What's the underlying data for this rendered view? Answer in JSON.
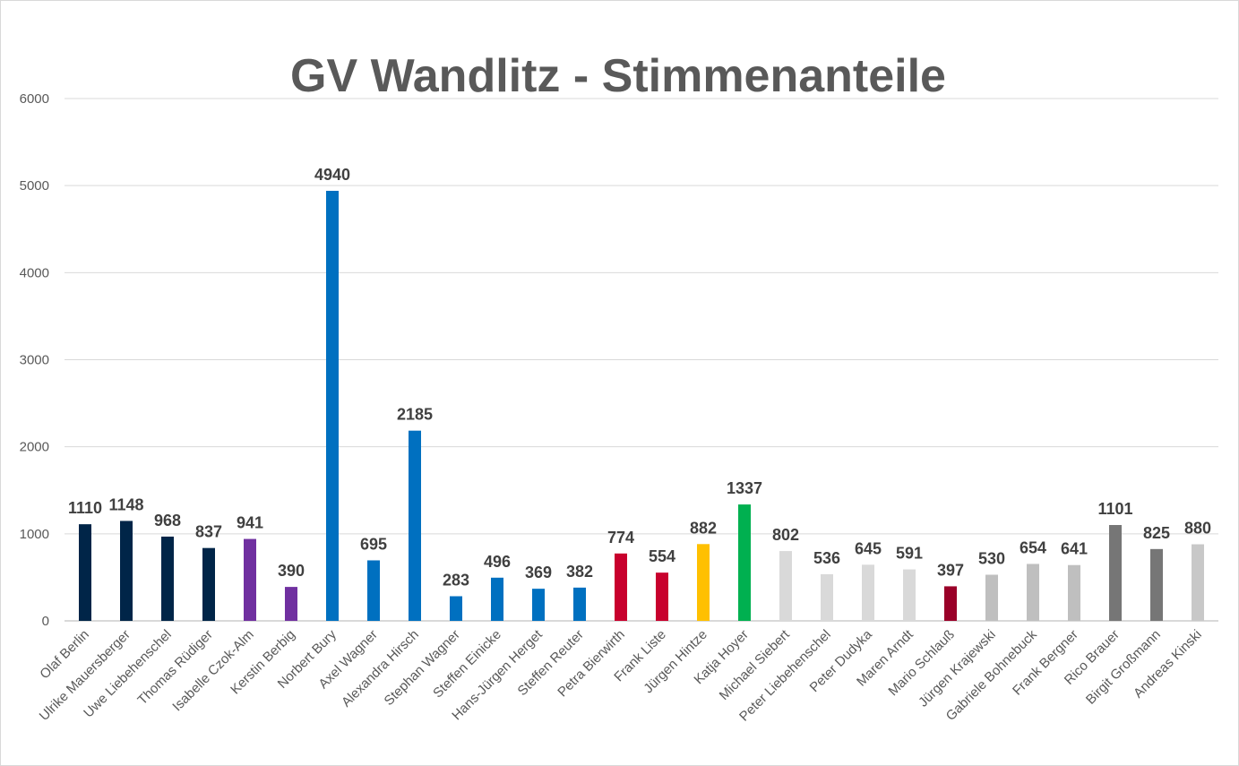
{
  "chart_data": {
    "type": "bar",
    "title": "GV Wandlitz - Stimmenanteile",
    "xlabel": "",
    "ylabel": "",
    "ylim": [
      0,
      6000
    ],
    "yticks": [
      "0",
      "1000",
      "2000",
      "3000",
      "4000",
      "5000",
      "6000"
    ],
    "grid": true,
    "legend": "none",
    "categories": [
      "Olaf Berlin",
      "Ulrike Mauersberger",
      "Uwe Liebehenschel",
      "Thomas Rüdiger",
      "Isabelle Czok-Alm",
      "Kerstin Berbig",
      "Norbert Bury",
      "Axel Wagner",
      "Alexandra Hirsch",
      "Stephan Wagner",
      "Steffen Einicke",
      "Hans-Jürgen Herget",
      "Steffen Reuter",
      "Petra Bierwirth",
      "Frank Liste",
      "Jürgen Hintze",
      "Katja Hoyer",
      "Michael Siebert",
      "Peter Liebehenschel",
      "Peter Dudyka",
      "Maren Arndt",
      "Mario Schlauß",
      "Jürgen Krajewski",
      "Gabriele Bohnebuck",
      "Frank Bergner",
      "Rico Brauer",
      "Birgit Großmann",
      "Andreas Kinski"
    ],
    "values": [
      1110,
      1148,
      968,
      837,
      941,
      390,
      4940,
      695,
      2185,
      283,
      496,
      369,
      382,
      774,
      554,
      882,
      1337,
      802,
      536,
      645,
      591,
      397,
      530,
      654,
      641,
      1101,
      825,
      880
    ],
    "colors": [
      "#002548",
      "#002548",
      "#002548",
      "#002548",
      "#7030A0",
      "#7030A0",
      "#0070C0",
      "#0070C0",
      "#0070C0",
      "#0070C0",
      "#0070C0",
      "#0070C0",
      "#0070C0",
      "#C8002D",
      "#C8002D",
      "#FFC000",
      "#00B050",
      "#D9D9D9",
      "#D9D9D9",
      "#D9D9D9",
      "#D9D9D9",
      "#9A0028",
      "#BFBFBF",
      "#BFBFBF",
      "#BFBFBF",
      "#767676",
      "#767676",
      "#C8C8C8"
    ]
  }
}
